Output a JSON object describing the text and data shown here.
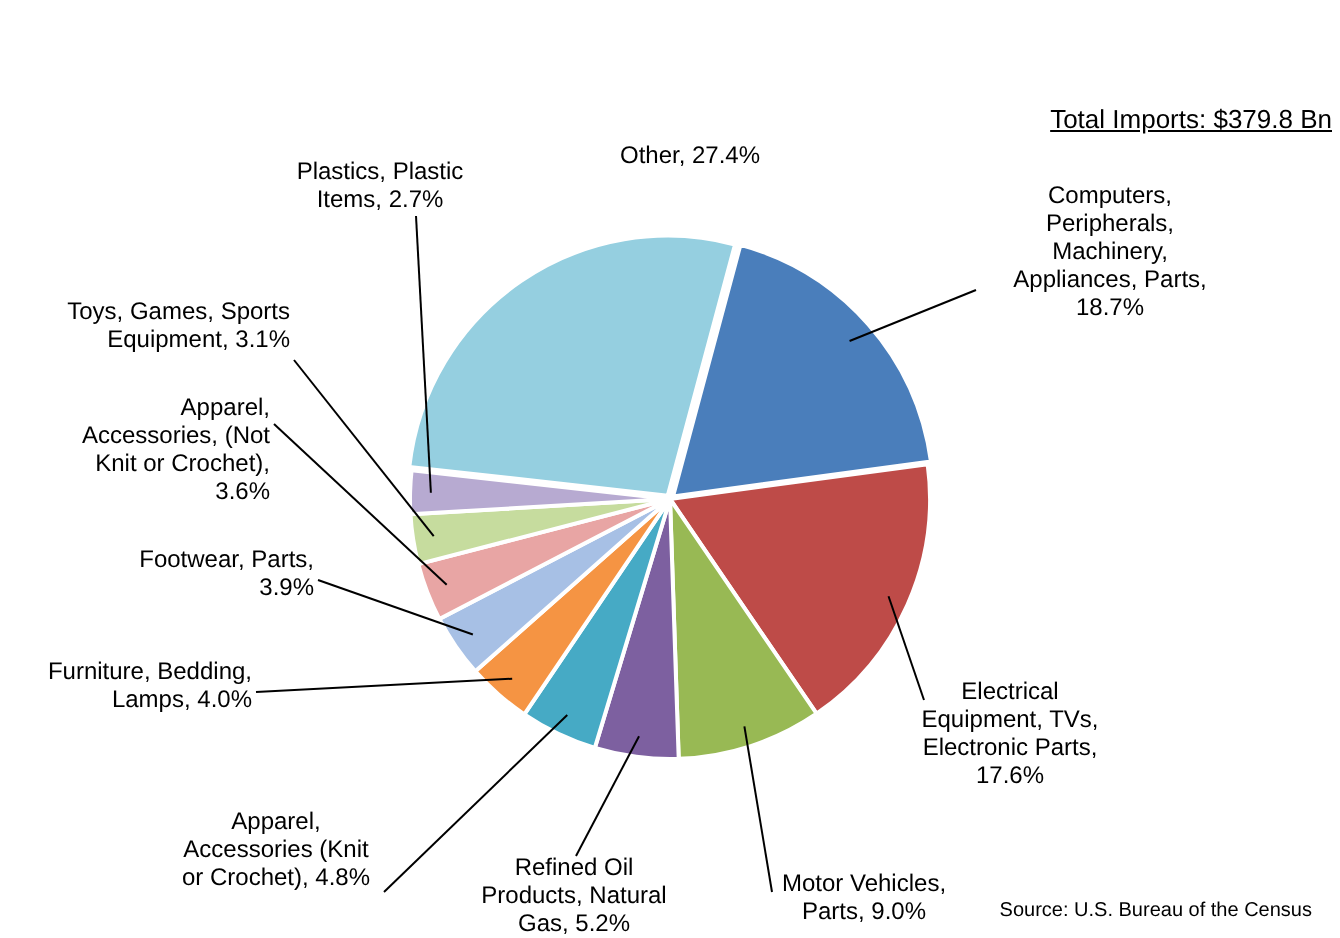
{
  "chart_data": {
    "type": "pie",
    "title": "Total Imports: $379.8 Bn",
    "categories": [
      "Computers, Peripherals, Machinery, Appliances, Parts, 18.7%",
      "Electrical Equipment, TVs, Electronic Parts, 17.6%",
      "Motor Vehicles, Parts, 9.0%",
      "Refined Oil Products, Natural Gas, 5.2%",
      "Apparel, Accessories (Knit or Crochet), 4.8%",
      "Furniture, Bedding, Lamps, 4.0%",
      "Footwear, Parts, 3.9%",
      "Apparel, Accessories, (Not Knit or Crochet), 3.6%",
      "Toys, Games, Sports Equipment, 3.1%",
      "Plastics, Plastic Items, 2.7%",
      "Other, 27.4%"
    ],
    "values": [
      18.7,
      17.6,
      9.0,
      5.2,
      4.8,
      4.0,
      3.9,
      3.6,
      3.1,
      2.7,
      27.4
    ],
    "colors": [
      "#4a7ebb",
      "#be4b48",
      "#98b954",
      "#7d60a0",
      "#46aac5",
      "#f59443",
      "#a7c0e5",
      "#e8a5a4",
      "#c6dc9e",
      "#b7aad1",
      "#95cfe0"
    ],
    "annotations": [
      "Source:  U.S. Bureau of the Census"
    ],
    "legend": false
  }
}
